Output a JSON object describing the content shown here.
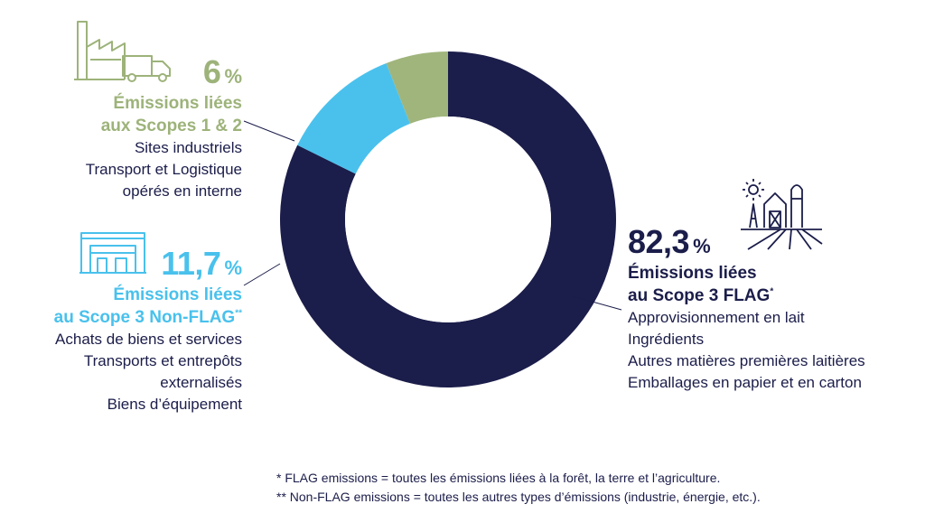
{
  "chart_data": {
    "type": "pie",
    "variant": "donut",
    "slices": [
      {
        "name": "Émissions liées au Scope 3 FLAG",
        "value": 82.3,
        "color": "#1b1d4a"
      },
      {
        "name": "Émissions liées au Scope 3 Non-FLAG",
        "value": 11.7,
        "color": "#4ac1ed"
      },
      {
        "name": "Émissions liées aux Scopes 1 & 2",
        "value": 6,
        "color": "#a0b57c"
      }
    ]
  },
  "scope12": {
    "pct": "6",
    "sign": "%",
    "title": [
      "Émissions liées",
      "aux Scopes 1 & 2"
    ],
    "items": [
      "Sites industriels",
      "Transport et Logistique",
      "opérés en interne"
    ]
  },
  "nonflag": {
    "pct": "11,7",
    "sign": "%",
    "title": [
      "Émissions liées",
      "au Scope 3 Non-FLAG"
    ],
    "title_mark": "**",
    "items": [
      "Achats de biens et services",
      "Transports et entrepôts",
      "externalisés",
      "Biens d’équipement"
    ]
  },
  "flag": {
    "pct": "82,3",
    "sign": "%",
    "title": [
      "Émissions liées",
      "au Scope 3 FLAG"
    ],
    "title_mark": "*",
    "items": [
      "Approvisionnement en lait",
      "Ingrédients",
      "Autres matières premières laitières",
      "Emballages en papier et en carton"
    ]
  },
  "footnotes": [
    "* FLAG emissions = toutes les émissions liées à la forêt, la terre et l’agriculture.",
    "** Non-FLAG emissions = toutes les autres types d’émissions (industrie, énergie, etc.)."
  ],
  "icons": [
    "factory-truck-icon",
    "warehouse-icon",
    "farm-icon"
  ],
  "colors": {
    "navy": "#1b1d4a",
    "blue": "#4ac1ed",
    "green": "#a0b57c"
  }
}
